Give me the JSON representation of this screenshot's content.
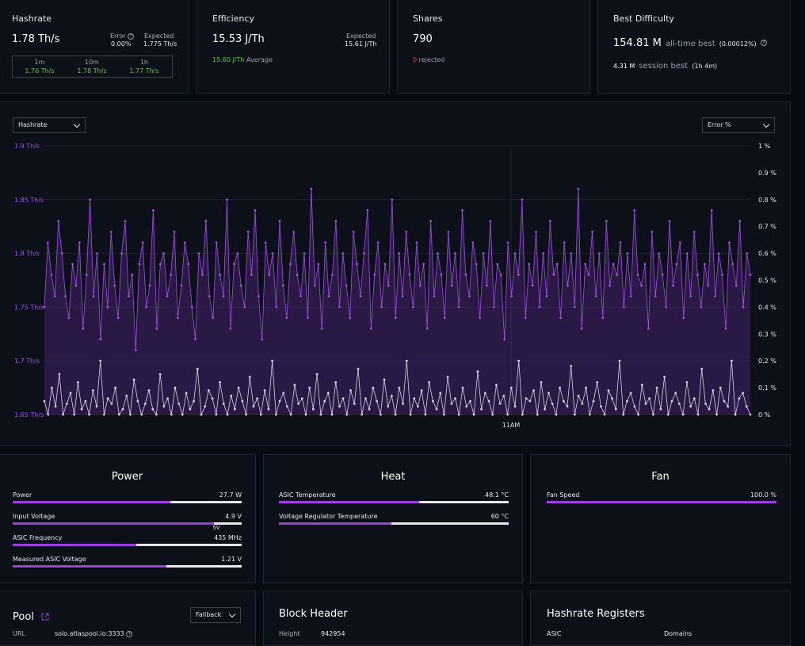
{
  "hashrate": {
    "title": "Hashrate",
    "value": "1.78 Th/s",
    "error_label": "Error",
    "error_value": "0.00%",
    "expected_label": "Expected",
    "expected_value": "1.775 Th/s",
    "windows": [
      {
        "label": "1m",
        "value": "1.76 Th/s"
      },
      {
        "label": "10m",
        "value": "1.78 Th/s"
      },
      {
        "label": "1h",
        "value": "1.77 Th/s"
      }
    ]
  },
  "efficiency": {
    "title": "Efficiency",
    "value": "15.53 J/Th",
    "expected_label": "Expected",
    "expected_value": "15.61 J/Th",
    "average_value": "15.60 J/Th",
    "average_label": "Average"
  },
  "shares": {
    "title": "Shares",
    "value": "790",
    "rejected_count": "0",
    "rejected_label": "rejected"
  },
  "best_difficulty": {
    "title": "Best Difficulty",
    "value": "154.81 M",
    "alltime_label": "all-time best",
    "alltime_pct": "(0.00012%)",
    "session_value": "4.31 M",
    "session_label": "session best",
    "session_duration": "(1h 4m)"
  },
  "chart_controls": {
    "left_select": "Hashrate",
    "right_select": "Error %"
  },
  "chart_data": {
    "type": "line",
    "x_tick_label": "11AM",
    "left_axis": {
      "ticks": [
        "1.9 Th/s",
        "1.85 Th/s",
        "1.8 Th/s",
        "1.75 Th/s",
        "1.7 Th/s",
        "1.65 Th/s"
      ],
      "ylim": [
        1.65,
        1.9
      ]
    },
    "right_axis": {
      "ticks": [
        "1 %",
        "0.9 %",
        "0.8 %",
        "0.7 %",
        "0.6 %",
        "0.5 %",
        "0.4 %",
        "0.3 %",
        "0.2 %",
        "0.1 %",
        "0 %"
      ],
      "ylim": [
        0,
        1
      ]
    },
    "series": [
      {
        "axis": "left",
        "color": "#a24fe6",
        "values": [
          1.75,
          1.81,
          1.78,
          1.76,
          1.83,
          1.8,
          1.76,
          1.74,
          1.79,
          1.77,
          1.81,
          1.73,
          1.78,
          1.85,
          1.76,
          1.8,
          1.72,
          1.79,
          1.75,
          1.82,
          1.77,
          1.74,
          1.8,
          1.83,
          1.76,
          1.78,
          1.71,
          1.79,
          1.81,
          1.75,
          1.77,
          1.84,
          1.73,
          1.79,
          1.8,
          1.76,
          1.78,
          1.82,
          1.74,
          1.77,
          1.81,
          1.79,
          1.75,
          1.72,
          1.8,
          1.78,
          1.83,
          1.76,
          1.74,
          1.81,
          1.78,
          1.76,
          1.85,
          1.73,
          1.79,
          1.8,
          1.77,
          1.75,
          1.82,
          1.78,
          1.84,
          1.76,
          1.72,
          1.81,
          1.78,
          1.8,
          1.75,
          1.83,
          1.77,
          1.74,
          1.79,
          1.82,
          1.78,
          1.76,
          1.8,
          1.74,
          1.86,
          1.77,
          1.79,
          1.73,
          1.81,
          1.76,
          1.78,
          1.83,
          1.75,
          1.8,
          1.77,
          1.74,
          1.82,
          1.79,
          1.76,
          1.8,
          1.84,
          1.73,
          1.78,
          1.81,
          1.75,
          1.79,
          1.77,
          1.85,
          1.74,
          1.8,
          1.76,
          1.82,
          1.78,
          1.75,
          1.81,
          1.77,
          1.79,
          1.73,
          1.83,
          1.76,
          1.8,
          1.78,
          1.74,
          1.82,
          1.77,
          1.8,
          1.75,
          1.84,
          1.78,
          1.76,
          1.81,
          1.79,
          1.74,
          1.8,
          1.77,
          1.83,
          1.75,
          1.79,
          1.78,
          1.72,
          1.81,
          1.76,
          1.8,
          1.78,
          1.85,
          1.74,
          1.79,
          1.77,
          1.82,
          1.75,
          1.8,
          1.76,
          1.83,
          1.78,
          1.79,
          1.74,
          1.81,
          1.77,
          1.8,
          1.75,
          1.86,
          1.73,
          1.79,
          1.78,
          1.82,
          1.76,
          1.8,
          1.74,
          1.83,
          1.77,
          1.79,
          1.78,
          1.81,
          1.75,
          1.8,
          1.76,
          1.84,
          1.78,
          1.77,
          1.79,
          1.73,
          1.82,
          1.76,
          1.8,
          1.78,
          1.75,
          1.83,
          1.77,
          1.79,
          1.81,
          1.74,
          1.8,
          1.76,
          1.82,
          1.78,
          1.75,
          1.79,
          1.77,
          1.84,
          1.76,
          1.8,
          1.78,
          1.73,
          1.81,
          1.79,
          1.77,
          1.83,
          1.75,
          1.8,
          1.78
        ]
      },
      {
        "axis": "right",
        "color": "#d9d2e6",
        "values": [
          0.05,
          0,
          0.1,
          0.03,
          0.15,
          0,
          0.04,
          0.08,
          0,
          0.12,
          0.02,
          0.05,
          0,
          0.09,
          0.03,
          0.2,
          0,
          0.06,
          0.04,
          0.1,
          0,
          0.02,
          0.07,
          0,
          0.13,
          0.05,
          0,
          0.04,
          0.09,
          0.02,
          0,
          0.15,
          0.03,
          0.06,
          0,
          0.1,
          0.04,
          0,
          0.08,
          0.02,
          0.05,
          0.17,
          0,
          0.03,
          0.09,
          0.06,
          0,
          0.12,
          0.04,
          0,
          0.07,
          0.02,
          0.1,
          0.05,
          0,
          0.14,
          0.03,
          0.06,
          0,
          0.09,
          0.02,
          0.2,
          0,
          0.05,
          0.08,
          0.03,
          0,
          0.11,
          0.04,
          0.06,
          0,
          0.1,
          0.02,
          0.15,
          0,
          0.05,
          0.08,
          0,
          0.12,
          0.03,
          0.06,
          0,
          0.09,
          0.04,
          0.17,
          0,
          0.06,
          0.02,
          0.1,
          0.05,
          0,
          0.13,
          0.03,
          0.07,
          0,
          0.1,
          0.04,
          0.2,
          0,
          0.06,
          0.03,
          0.09,
          0,
          0.12,
          0.05,
          0.02,
          0.08,
          0,
          0.14,
          0.04,
          0.06,
          0,
          0.1,
          0.03,
          0.05,
          0,
          0.16,
          0.02,
          0.08,
          0.05,
          0,
          0.11,
          0.04,
          0.07,
          0,
          0.1,
          0.03,
          0.2,
          0,
          0.06,
          0.05,
          0.09,
          0,
          0.12,
          0.02,
          0.08,
          0.04,
          0,
          0.1,
          0.05,
          0.03,
          0.18,
          0,
          0.07,
          0.04,
          0.1,
          0,
          0.05,
          0.12,
          0.03,
          0,
          0.09,
          0.06,
          0.02,
          0.2,
          0,
          0.05,
          0.08,
          0.03,
          0,
          0.11,
          0.04,
          0.06,
          0,
          0.1,
          0.02,
          0.14,
          0,
          0.05,
          0.08,
          0.04,
          0,
          0.12,
          0.03,
          0.06,
          0,
          0.17,
          0.04,
          0.02,
          0.09,
          0,
          0.1,
          0.05,
          0.03,
          0.2,
          0,
          0.06,
          0.08,
          0.03,
          0
        ]
      }
    ]
  },
  "power": {
    "title": "Power",
    "rows": [
      {
        "label": "Power",
        "value": "27.7 W",
        "fraction": 0.69
      },
      {
        "label": "Input Voltage",
        "value": "4.9 V",
        "fraction": 0.88,
        "marker": "5V"
      },
      {
        "label": "ASIC Frequency",
        "value": "435 MHz",
        "fraction": 0.54
      },
      {
        "label": "Measured ASIC Voltage",
        "value": "1.21 V",
        "fraction": 0.67
      }
    ]
  },
  "heat": {
    "title": "Heat",
    "rows": [
      {
        "label": "ASIC Temperature",
        "value": "48.1 °C",
        "fraction": 0.61
      },
      {
        "label": "Voltage Regulator Temperature",
        "value": "60 °C",
        "fraction": 0.49
      }
    ]
  },
  "fan": {
    "title": "Fan",
    "rows": [
      {
        "label": "Fan Speed",
        "value": "100.0 %",
        "fraction": 1.0
      }
    ]
  },
  "pool": {
    "title": "Pool",
    "select": "Fallback",
    "url_label": "URL",
    "url_value": "solo.atlaspool.io:3333"
  },
  "block_header": {
    "title": "Block Header",
    "height_label": "Height",
    "height_value": "942954"
  },
  "hashrate_registers": {
    "title": "Hashrate Registers",
    "col1": "ASIC",
    "col2": "Domains"
  }
}
